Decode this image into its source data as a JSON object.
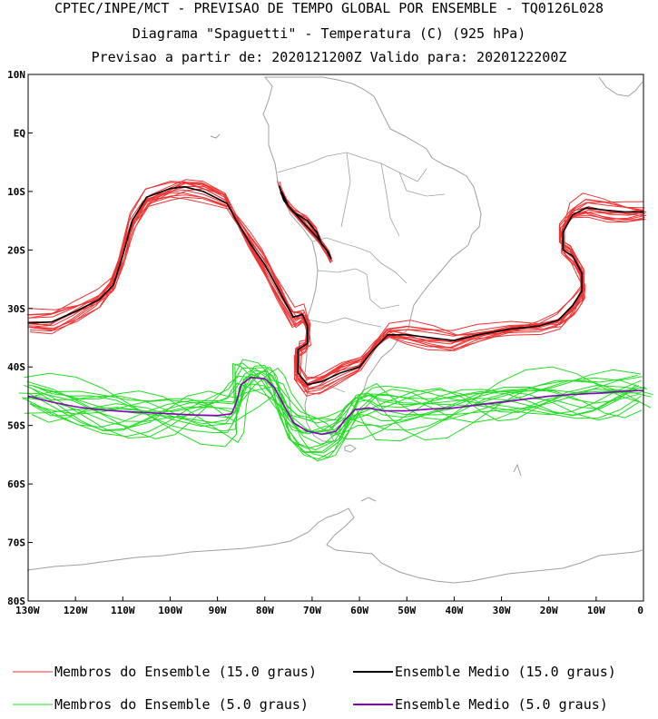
{
  "titles": {
    "line1": "CPTEC/INPE/MCT - PREVISAO DE TEMPO GLOBAL POR ENSEMBLE - TQ0126L028",
    "line2": "Diagrama \"Spaguetti\" - Temperatura (C) (925 hPa)",
    "line3": "Previsao a partir de: 2020121200Z  Valido para: 2020122200Z"
  },
  "colors": {
    "member_15": "#ee3333",
    "mean_15": "#000000",
    "member_5": "#22dd22",
    "mean_5": "#8800bb",
    "coast": "#a0a0a0",
    "frame": "#000000"
  },
  "chart_data": {
    "type": "line",
    "title": "Diagrama \"Spaguetti\" - Temperatura (C) (925 hPa)",
    "xlim": [
      -130,
      0
    ],
    "ylim": [
      -80,
      10
    ],
    "x_tick_values": [
      -130,
      -120,
      -110,
      -100,
      -90,
      -80,
      -70,
      -60,
      -50,
      -40,
      -30,
      -20,
      -10,
      0
    ],
    "x_tick_labels": [
      "130W",
      "120W",
      "110W",
      "100W",
      "90W",
      "80W",
      "70W",
      "60W",
      "50W",
      "40W",
      "30W",
      "20W",
      "10W",
      "0"
    ],
    "y_tick_values": [
      10,
      0,
      -10,
      -20,
      -30,
      -40,
      -50,
      -60,
      -70,
      -80
    ],
    "y_tick_labels": [
      "10N",
      "EQ",
      "10S",
      "20S",
      "30S",
      "40S",
      "50S",
      "60S",
      "70S",
      "80S"
    ],
    "legend": [
      {
        "label": "Membros do Ensemble (15.0 graus)",
        "color": "#ee3333",
        "width": 1
      },
      {
        "label": "Ensemble Medio (15.0 graus)",
        "color": "#000000",
        "width": 2
      },
      {
        "label": "Membros do Ensemble (5.0 graus)",
        "color": "#22dd22",
        "width": 1
      },
      {
        "label": "Ensemble Medio (5.0 graus)",
        "color": "#8800bb",
        "width": 2
      }
    ],
    "mean_15": [
      [
        -130,
        -32.5
      ],
      [
        -125,
        -32.3
      ],
      [
        -120,
        -30.5
      ],
      [
        -115,
        -28.5
      ],
      [
        -112,
        -26
      ],
      [
        -110,
        -21
      ],
      [
        -108,
        -15
      ],
      [
        -105,
        -11
      ],
      [
        -100,
        -9.5
      ],
      [
        -97,
        -9.2
      ],
      [
        -93,
        -10
      ],
      [
        -88,
        -12
      ],
      [
        -86,
        -15
      ],
      [
        -83,
        -19
      ],
      [
        -80,
        -22.5
      ],
      [
        -77,
        -27
      ],
      [
        -74,
        -31.5
      ],
      [
        -72,
        -31
      ],
      [
        -71,
        -33
      ],
      [
        -71,
        -36
      ],
      [
        -73,
        -37
      ],
      [
        -73,
        -41
      ],
      [
        -71,
        -43
      ],
      [
        -68,
        -42.5
      ],
      [
        -64,
        -41
      ],
      [
        -60,
        -40
      ],
      [
        -57,
        -37
      ],
      [
        -54,
        -34.5
      ],
      [
        -50,
        -34.5
      ],
      [
        -45,
        -35
      ],
      [
        -40,
        -35.5
      ],
      [
        -35,
        -34.5
      ],
      [
        -28,
        -33.5
      ],
      [
        -22,
        -33
      ],
      [
        -18,
        -32
      ],
      [
        -15,
        -29.5
      ],
      [
        -13,
        -27
      ],
      [
        -13,
        -24
      ],
      [
        -15,
        -21
      ],
      [
        -17,
        -20
      ],
      [
        -17,
        -17
      ],
      [
        -15,
        -14
      ],
      [
        -12,
        -12.8
      ],
      [
        -8,
        -13.2
      ],
      [
        -4,
        -13.5
      ],
      [
        0,
        -13.5
      ]
    ],
    "mean_15_inland": [
      [
        -77,
        -9
      ],
      [
        -76,
        -11.5
      ],
      [
        -74,
        -13.5
      ],
      [
        -71,
        -15
      ],
      [
        -69,
        -17
      ],
      [
        -68,
        -19
      ],
      [
        -66.5,
        -20.5
      ],
      [
        -66,
        -21.5
      ],
      [
        -67,
        -20
      ],
      [
        -69,
        -17.8
      ],
      [
        -72,
        -15.2
      ],
      [
        -75,
        -12.5
      ],
      [
        -76.5,
        -10
      ]
    ],
    "mean_5": [
      [
        -130,
        -45
      ],
      [
        -125,
        -46
      ],
      [
        -120,
        -46.8
      ],
      [
        -115,
        -47.3
      ],
      [
        -110,
        -47.6
      ],
      [
        -105,
        -47.8
      ],
      [
        -100,
        -48
      ],
      [
        -95,
        -48.2
      ],
      [
        -90,
        -48.3
      ],
      [
        -87,
        -48
      ],
      [
        -86,
        -46
      ],
      [
        -85,
        -43
      ],
      [
        -83,
        -41.8
      ],
      [
        -80,
        -42
      ],
      [
        -78,
        -43.5
      ],
      [
        -76,
        -46.5
      ],
      [
        -74,
        -49.5
      ],
      [
        -71,
        -51
      ],
      [
        -68,
        -51.5
      ],
      [
        -65,
        -51
      ],
      [
        -63,
        -49
      ],
      [
        -61,
        -47.3
      ],
      [
        -58,
        -47
      ],
      [
        -55,
        -47.5
      ],
      [
        -50,
        -47.5
      ],
      [
        -45,
        -47.2
      ],
      [
        -40,
        -47
      ],
      [
        -35,
        -46.5
      ],
      [
        -30,
        -46
      ],
      [
        -25,
        -45.5
      ],
      [
        -20,
        -45
      ],
      [
        -15,
        -44.7
      ],
      [
        -10,
        -44.5
      ],
      [
        -5,
        -44.2
      ],
      [
        0,
        -44
      ]
    ]
  }
}
